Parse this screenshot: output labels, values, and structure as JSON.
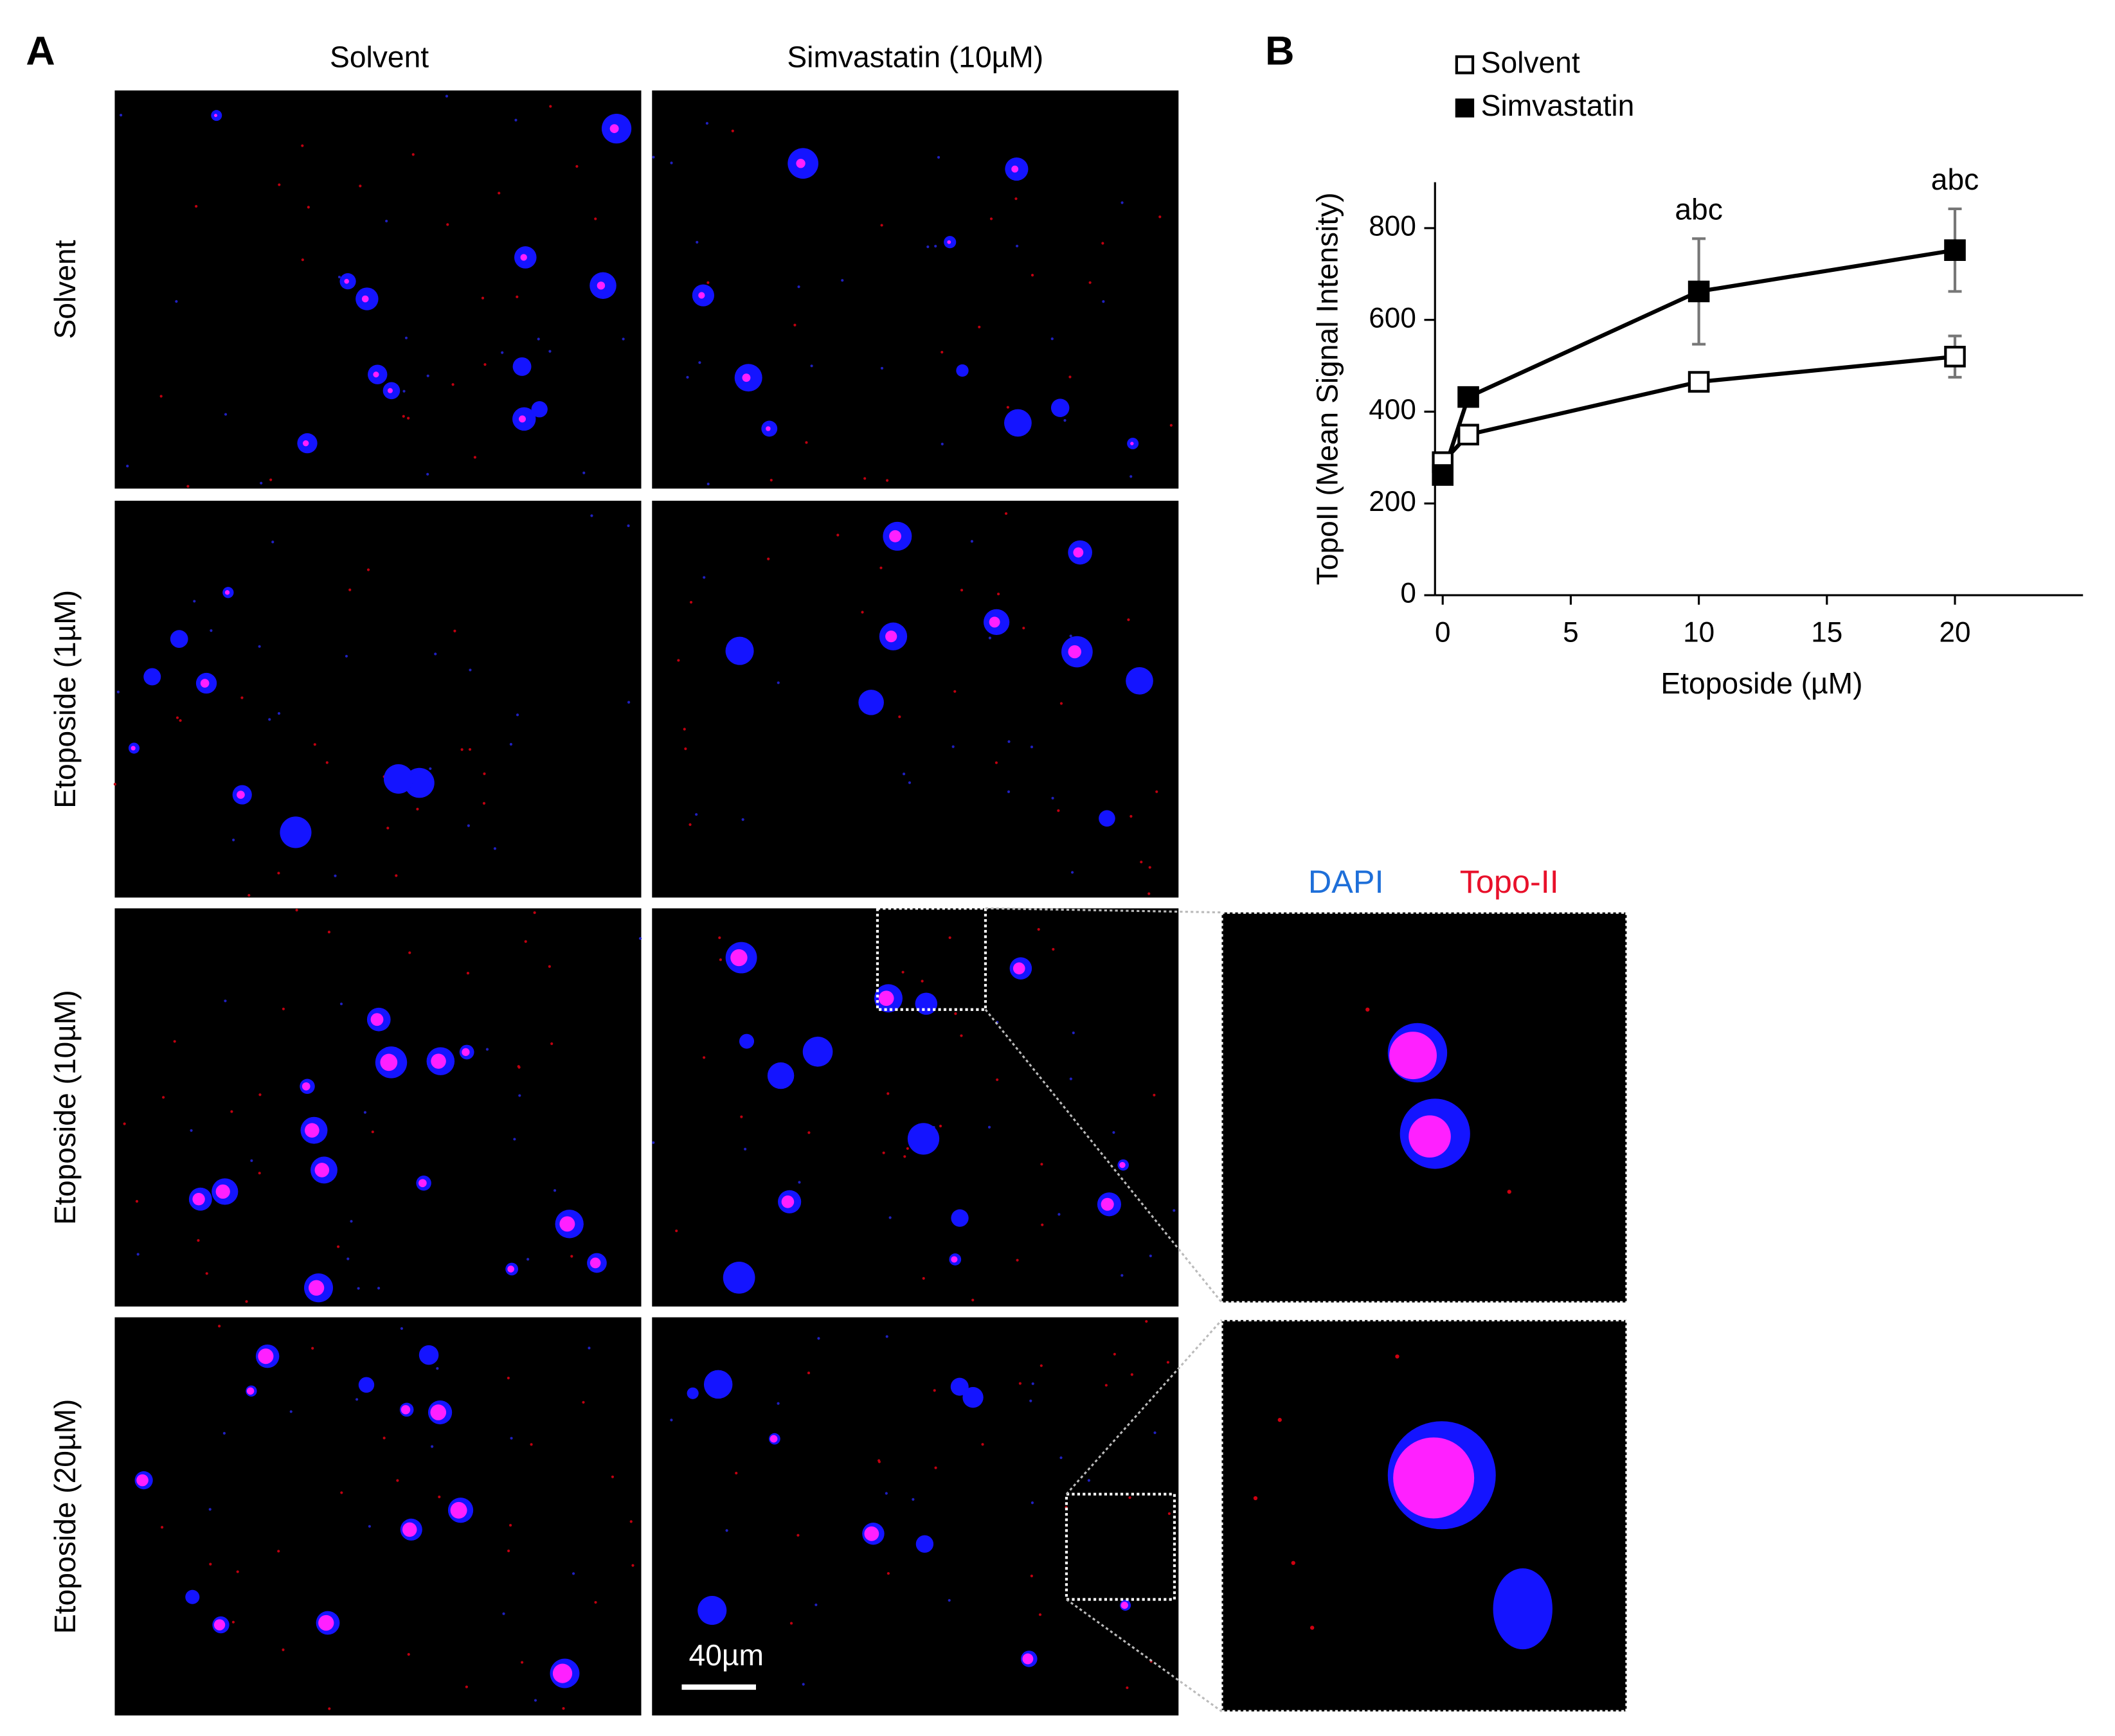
{
  "figure": {
    "panel_a_label": "A",
    "panel_b_label": "B",
    "columns": [
      "Solvent",
      "Simvastatin (10µM)"
    ],
    "rows": [
      "Solvent",
      "Etoposide (1µM)",
      "Etoposide (10µM)",
      "Etoposide (20µM)"
    ],
    "scale_bar": "40µm",
    "stain_labels": [
      "DAPI",
      "Topo-II"
    ]
  },
  "chart_data": {
    "type": "line",
    "y_label": "TopoII (Mean Signal Intensity)",
    "x_label": "Etoposide (µM)",
    "x": [
      0,
      1,
      10,
      20
    ],
    "series": [
      {
        "name": "Solvent",
        "color": "#000000",
        "marker_fill": "#ffffff",
        "values": [
          290,
          350,
          465,
          520
        ],
        "errors": [
          20,
          15,
          10,
          45
        ]
      },
      {
        "name": "Simvastatin",
        "color": "#000000",
        "marker_fill": "#000000",
        "values": [
          262,
          432,
          662,
          752
        ],
        "errors": [
          10,
          20,
          115,
          90
        ]
      }
    ],
    "annotations": [
      {
        "x": 10,
        "text": "abc"
      },
      {
        "x": 20,
        "text": "abc"
      }
    ],
    "xlim": [
      -0.3,
      25
    ],
    "ylim": [
      0,
      900
    ],
    "xticks": [
      0,
      5,
      10,
      15,
      20
    ],
    "yticks": [
      0,
      200,
      400,
      600,
      800
    ]
  }
}
